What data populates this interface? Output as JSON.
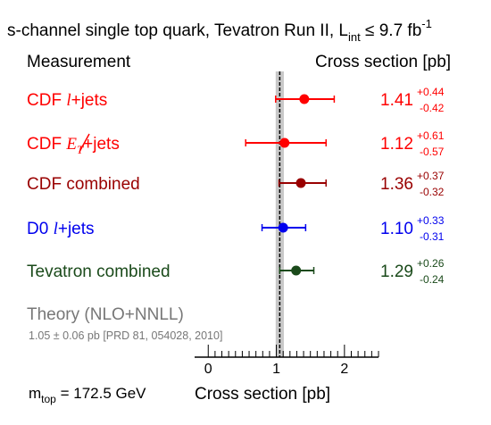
{
  "chart_data": {
    "type": "scatter",
    "title": {
      "main": "s-channel single top quark, Tevatron Run II, L",
      "sub": "int",
      "rest": " ≤ 9.7 fb",
      "sup": "-1"
    },
    "header_left": "Measurement",
    "header_right": "Cross section [pb]",
    "xlabel": "Cross section [pb]",
    "xlim": [
      -0.2,
      2.5
    ],
    "xticks": [
      0,
      1,
      2
    ],
    "footnote": {
      "main": "m",
      "sub": "top",
      "rest": " = 172.5 GeV"
    },
    "theory": {
      "label": "Theory (NLO+NNLL)",
      "detail": "1.05 ± 0.06 pb [PRD 81, 054028, 2010]",
      "value": 1.05,
      "uncertainty": 0.06,
      "band_color": "#c8c8c8",
      "line_color": "#000000"
    },
    "measurements": [
      {
        "pre": "CDF ",
        "ital": "l",
        "post": "+jets",
        "value": 1.41,
        "value_text": "1.41",
        "err_up": 0.44,
        "err_down": 0.42,
        "up_text": "+0.44",
        "down_text": "-0.42",
        "color": "#ff0000"
      },
      {
        "pre": "CDF ",
        "ital": "E",
        "sub": "T",
        "post": "+jets",
        "slashed": true,
        "value": 1.12,
        "value_text": "1.12",
        "err_up": 0.61,
        "err_down": 0.57,
        "up_text": "+0.61",
        "down_text": "-0.57",
        "color": "#ff0000"
      },
      {
        "pre": "CDF combined",
        "value": 1.36,
        "value_text": "1.36",
        "err_up": 0.37,
        "err_down": 0.32,
        "up_text": "+0.37",
        "down_text": "-0.32",
        "color": "#990000"
      },
      {
        "pre": "D0 ",
        "ital": "l",
        "post": "+jets",
        "value": 1.1,
        "value_text": "1.10",
        "err_up": 0.33,
        "err_down": 0.31,
        "up_text": "+0.33",
        "down_text": "-0.31",
        "color": "#0000ee"
      },
      {
        "pre": "Tevatron combined",
        "value": 1.29,
        "value_text": "1.29",
        "err_up": 0.26,
        "err_down": 0.24,
        "up_text": "+0.26",
        "down_text": "-0.24",
        "color": "#1a4a1a"
      }
    ]
  }
}
